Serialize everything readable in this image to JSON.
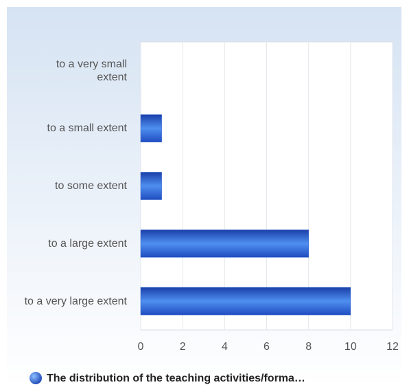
{
  "chart_data": {
    "type": "bar",
    "orientation": "horizontal",
    "categories": [
      "to a very small extent",
      "to a small extent",
      "to some extent",
      "to a large extent",
      "to a very large extent"
    ],
    "series": [
      {
        "name": "The distribution of the teaching activities/forma…",
        "color": "#2a5fd0",
        "values": [
          0,
          1,
          1,
          8,
          10
        ]
      }
    ],
    "xlim": [
      0,
      12
    ],
    "xticks": [
      0,
      2,
      4,
      6,
      8,
      10,
      12
    ],
    "grid": true,
    "legend": "bottom"
  }
}
